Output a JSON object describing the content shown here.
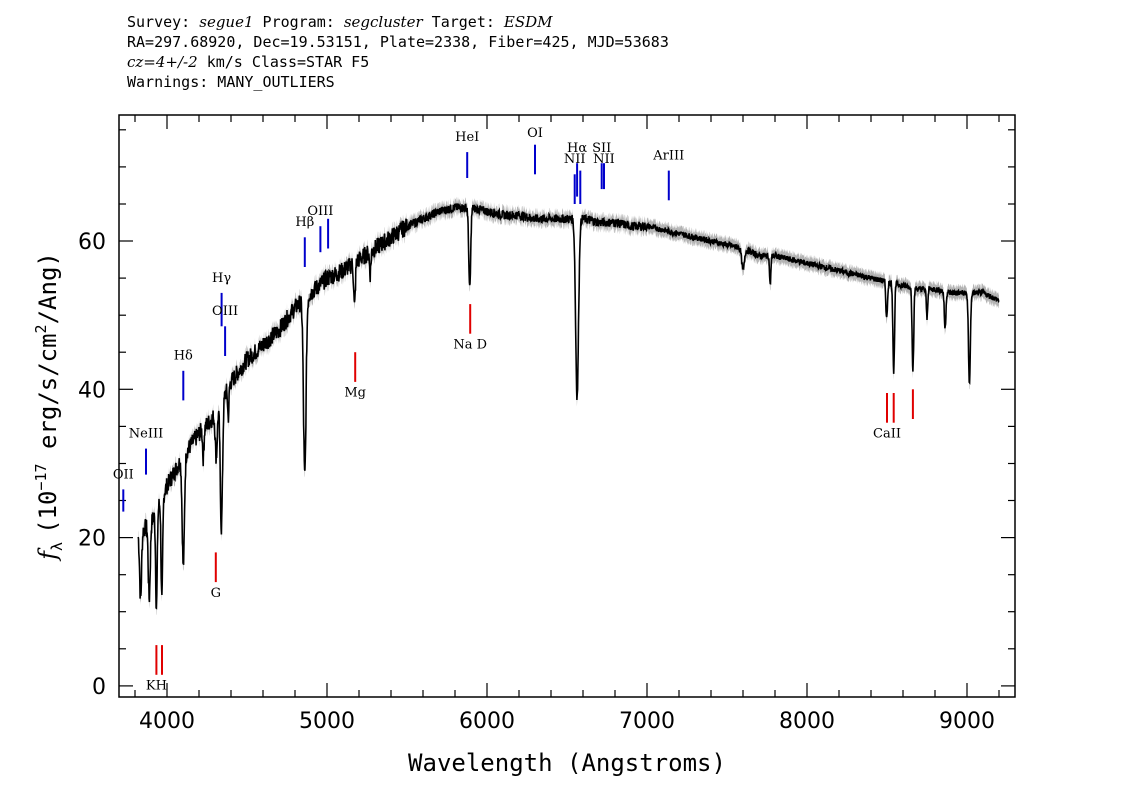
{
  "header": {
    "line1": {
      "survey_label": "Survey:",
      "survey": "segue1",
      "program_label": "Program:",
      "program": "segcluster",
      "target_label": "Target:",
      "target": "ESDM"
    },
    "line2": "RA=297.68920, Dec=19.53151, Plate=2338, Fiber=425, MJD=53683",
    "line3": {
      "cz": "cz=4+/-2",
      "rest": "km/s Class=STAR F5"
    },
    "line4": "Warnings: MANY_OUTLIERS"
  },
  "chart_data": {
    "type": "line",
    "xlabel": "Wavelength (Angstroms)",
    "ylabel": "f_λ (10^-17 erg/s/cm^2/Ang)",
    "ylabel_parts": {
      "f": "f",
      "sub": "λ",
      "pre": "(10",
      "exp1": "−17",
      "mid": " erg/s/cm",
      "exp2": "2",
      "post": "/Ang)"
    },
    "xlim": [
      3700,
      9300
    ],
    "ylim": [
      -1.5,
      77
    ],
    "x_ticks": [
      4000,
      5000,
      6000,
      7000,
      8000,
      9000
    ],
    "y_ticks": [
      0,
      20,
      40,
      60
    ],
    "colors": {
      "spectrum": "#000000",
      "error_band": "#b3b3b3",
      "emission": "#0000cc",
      "absorption": "#e00000"
    },
    "continuum": [
      [
        3820,
        20.5
      ],
      [
        3900,
        22
      ],
      [
        4000,
        27
      ],
      [
        4100,
        31
      ],
      [
        4200,
        34
      ],
      [
        4300,
        36.5
      ],
      [
        4400,
        41
      ],
      [
        4500,
        44
      ],
      [
        4600,
        46
      ],
      [
        4700,
        48
      ],
      [
        4800,
        51
      ],
      [
        4900,
        53
      ],
      [
        5000,
        55
      ],
      [
        5100,
        56
      ],
      [
        5200,
        57.5
      ],
      [
        5300,
        59
      ],
      [
        5400,
        60.5
      ],
      [
        5500,
        62
      ],
      [
        5600,
        63
      ],
      [
        5700,
        64
      ],
      [
        5800,
        64.5
      ],
      [
        5900,
        64.5
      ],
      [
        6000,
        64
      ],
      [
        6100,
        63.5
      ],
      [
        6200,
        63.5
      ],
      [
        6300,
        63
      ],
      [
        6400,
        63
      ],
      [
        6500,
        63
      ],
      [
        6600,
        63
      ],
      [
        6700,
        62.5
      ],
      [
        6800,
        62.5
      ],
      [
        6900,
        62
      ],
      [
        7000,
        62
      ],
      [
        7100,
        61.5
      ],
      [
        7200,
        61
      ],
      [
        7300,
        60.5
      ],
      [
        7400,
        60
      ],
      [
        7500,
        59.5
      ],
      [
        7600,
        59
      ],
      [
        7700,
        58
      ],
      [
        7800,
        58
      ],
      [
        7900,
        57.5
      ],
      [
        8000,
        57
      ],
      [
        8100,
        56.5
      ],
      [
        8200,
        56
      ],
      [
        8300,
        55.5
      ],
      [
        8400,
        55
      ],
      [
        8500,
        54.5
      ],
      [
        8600,
        54
      ],
      [
        8700,
        53.5
      ],
      [
        8800,
        53.5
      ],
      [
        8900,
        53
      ],
      [
        9000,
        53
      ],
      [
        9100,
        53
      ],
      [
        9200,
        52
      ]
    ],
    "absorption_features": [
      {
        "center": 3835,
        "depth": 9,
        "width": 6
      },
      {
        "center": 3889,
        "depth": 10,
        "width": 6
      },
      {
        "center": 3934,
        "depth": 13,
        "width": 5
      },
      {
        "center": 3968,
        "depth": 14,
        "width": 5
      },
      {
        "center": 4102,
        "depth": 15,
        "width": 7
      },
      {
        "center": 4227,
        "depth": 4,
        "width": 4
      },
      {
        "center": 4308,
        "depth": 6,
        "width": 6
      },
      {
        "center": 4340,
        "depth": 17,
        "width": 7
      },
      {
        "center": 4383,
        "depth": 4,
        "width": 4
      },
      {
        "center": 4861,
        "depth": 24,
        "width": 8
      },
      {
        "center": 5172,
        "depth": 6,
        "width": 5
      },
      {
        "center": 5270,
        "depth": 3,
        "width": 4
      },
      {
        "center": 5892,
        "depth": 11,
        "width": 6
      },
      {
        "center": 6563,
        "depth": 24,
        "width": 9
      },
      {
        "center": 7600,
        "depth": 3,
        "width": 8
      },
      {
        "center": 7770,
        "depth": 4,
        "width": 4
      },
      {
        "center": 8498,
        "depth": 5,
        "width": 5
      },
      {
        "center": 8542,
        "depth": 12,
        "width": 5
      },
      {
        "center": 8662,
        "depth": 11,
        "width": 5
      },
      {
        "center": 8750,
        "depth": 4,
        "width": 4
      },
      {
        "center": 8863,
        "depth": 5,
        "width": 5
      },
      {
        "center": 9015,
        "depth": 12,
        "width": 6
      }
    ],
    "emission_lines": [
      {
        "label": "OII",
        "x": 3727,
        "y_range": [
          23.5,
          26.5
        ],
        "label_y": 28
      },
      {
        "label": "NeIII",
        "x": 3869,
        "y_range": [
          28.5,
          32
        ],
        "label_y": 33.5
      },
      {
        "label": "Hδ",
        "x": 4102,
        "y_range": [
          38.5,
          42.5
        ],
        "label_y": 44
      },
      {
        "label": "Hγ",
        "x": 4341,
        "y_range": [
          48.5,
          53
        ],
        "label_y": 54.5
      },
      {
        "label": "OIII",
        "x": 4363,
        "y_range": [
          44.5,
          48.5
        ],
        "label_y": 50
      },
      {
        "label": "Hβ",
        "x": 4861,
        "y_range": [
          56.5,
          60.5
        ],
        "label_y": 62
      },
      {
        "label": "OIII",
        "x": 4959,
        "y_range": [
          58.5,
          62
        ],
        "label_y": 63.5
      },
      {
        "label": "OIII",
        "x": 5007,
        "y_range": [
          59,
          63
        ],
        "label_y": null
      },
      {
        "label": "HeI",
        "x": 5876,
        "y_range": [
          68.5,
          72
        ],
        "label_y": 73.5
      },
      {
        "label": "OI",
        "x": 6300,
        "y_range": [
          69,
          73
        ],
        "label_y": 74
      },
      {
        "label": "NII",
        "x": 6548,
        "y_range": [
          65,
          69
        ],
        "label_y": 70.5
      },
      {
        "label": "Hα",
        "x": 6563,
        "y_range": [
          66,
          70.5
        ],
        "label_y": 72
      },
      {
        "label": "NII",
        "x": 6583,
        "y_range": [
          65,
          69.5
        ],
        "label_y": null
      },
      {
        "label": "SII",
        "x": 6717,
        "y_range": [
          67,
          70.5
        ],
        "label_y": 72
      },
      {
        "label": "NII",
        "x": 6731,
        "y_range": [
          67,
          70.5
        ],
        "label_y": 70.5
      },
      {
        "label": "ArIII",
        "x": 7136,
        "y_range": [
          65.5,
          69.5
        ],
        "label_y": 71
      }
    ],
    "absorption_lines": [
      {
        "label": "KH",
        "x": 3934,
        "y_range": [
          1.5,
          5.5
        ],
        "label_y": -0.5
      },
      {
        "label": "",
        "x": 3969,
        "y_range": [
          1.5,
          5.5
        ],
        "label_y": null
      },
      {
        "label": "G",
        "x": 4305,
        "y_range": [
          14,
          18
        ],
        "label_y": 12
      },
      {
        "label": "Mg",
        "x": 5176,
        "y_range": [
          41,
          45
        ],
        "label_y": 39
      },
      {
        "label": "Na D",
        "x": 5895,
        "y_range": [
          47.5,
          51.5
        ],
        "label_y": 45.5
      },
      {
        "label": "CaII",
        "x": 8500,
        "y_range": [
          35.5,
          39.5
        ],
        "label_y": 33.5
      },
      {
        "label": "",
        "x": 8542,
        "y_range": [
          35.5,
          39.5
        ],
        "label_y": null
      },
      {
        "label": "",
        "x": 8662,
        "y_range": [
          36,
          40
        ],
        "label_y": null
      }
    ]
  }
}
